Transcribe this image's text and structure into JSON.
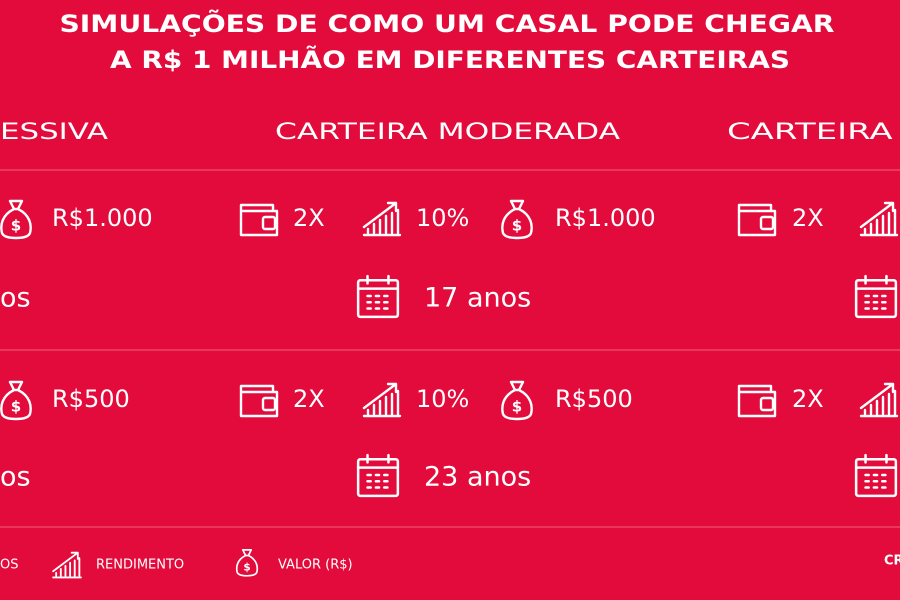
{
  "title": [
    "SIMULAÇÕES DE COMO UM CASAL PODE CHEGAR",
    "A R$ 1 MILHÃO EM DIFERENTES CARTEIRAS"
  ],
  "columns": [
    {
      "header": "ESSIVA",
      "rows": [
        {
          "value": "R$1.000",
          "years": "os"
        },
        {
          "value": "R$500",
          "years": "os"
        }
      ]
    },
    {
      "header": "CARTEIRA MODERADA",
      "rows": [
        {
          "people": "2X",
          "rate": "10%",
          "value": "R$1.000",
          "years": "17 anos"
        },
        {
          "people": "2X",
          "rate": "10%",
          "value": "R$500",
          "years": "23 anos"
        }
      ]
    },
    {
      "header": "CARTEIRA C",
      "rows": [
        {
          "people": "2X"
        },
        {
          "people": "2X"
        }
      ]
    }
  ],
  "legend": [
    "OS",
    "RENDIMENTO",
    "VALOR (R$)",
    "CR"
  ]
}
